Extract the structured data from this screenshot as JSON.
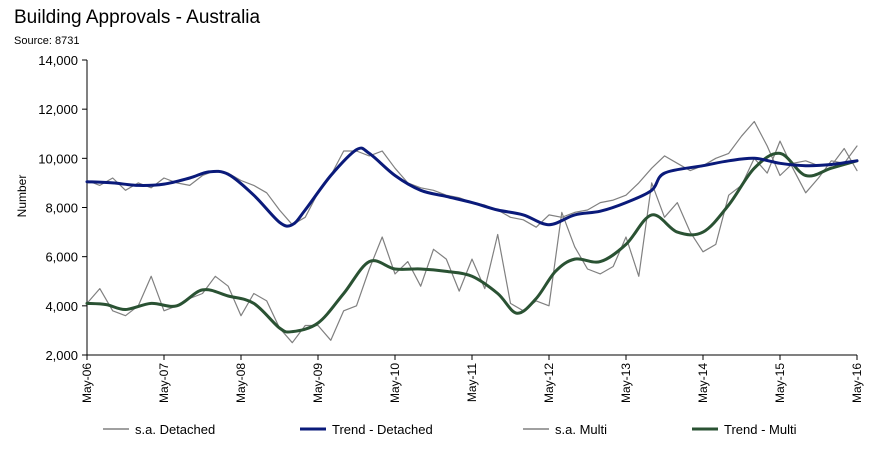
{
  "title": "Building Approvals - Australia",
  "subtitle": "Source: 8731",
  "chart_data": {
    "type": "line",
    "title": "Building Approvals - Australia",
    "subtitle": "Source: 8731",
    "xlabel": "",
    "ylabel": "Number",
    "ylim": [
      2000,
      14000
    ],
    "yticks": [
      2000,
      4000,
      6000,
      8000,
      10000,
      12000,
      14000
    ],
    "ytick_labels": [
      "2,000",
      "4,000",
      "6,000",
      "8,000",
      "10,000",
      "12,000",
      "14,000"
    ],
    "xtick_labels": [
      "May-06",
      "May-07",
      "May-08",
      "May-09",
      "May-10",
      "May-11",
      "May-12",
      "May-13",
      "May-14",
      "May-15",
      "May-16"
    ],
    "xlim": [
      0,
      120
    ],
    "grid": false,
    "legend_position": "bottom",
    "series": [
      {
        "name": "s.a. Detached",
        "color": "#808080",
        "style": "thin",
        "x": [
          0,
          2,
          4,
          6,
          8,
          10,
          12,
          14,
          16,
          18,
          20,
          22,
          24,
          26,
          28,
          30,
          32,
          34,
          36,
          38,
          40,
          42,
          44,
          46,
          48,
          50,
          52,
          54,
          56,
          58,
          60,
          62,
          64,
          66,
          68,
          70,
          72,
          74,
          76,
          78,
          80,
          82,
          84,
          86,
          88,
          90,
          92,
          94,
          96,
          98,
          100,
          102,
          104,
          106,
          108,
          110,
          112,
          114,
          116,
          118,
          120
        ],
        "values": [
          9100,
          8900,
          9200,
          8700,
          9000,
          8800,
          9200,
          9000,
          8900,
          9300,
          9500,
          9400,
          9100,
          8900,
          8600,
          7900,
          7300,
          7600,
          8600,
          9300,
          10300,
          10300,
          10100,
          10300,
          9600,
          9000,
          8800,
          8700,
          8500,
          8400,
          8200,
          8100,
          7900,
          7600,
          7500,
          7200,
          7700,
          7600,
          7800,
          7900,
          8200,
          8300,
          8500,
          9000,
          9600,
          10100,
          9800,
          9500,
          9700,
          10000,
          10200,
          10900,
          11500,
          10500,
          9300,
          9800,
          9900,
          9700,
          9700,
          10400,
          9500
        ]
      },
      {
        "name": "Trend - Detached",
        "color": "#0a1a7a",
        "style": "thick",
        "x": [
          0,
          4,
          8,
          12,
          16,
          19,
          22,
          26,
          30,
          32,
          34,
          38,
          42,
          44,
          48,
          52,
          56,
          60,
          64,
          68,
          72,
          76,
          80,
          84,
          88,
          90,
          96,
          100,
          104,
          108,
          112,
          116,
          120
        ],
        "values": [
          9050,
          9000,
          8900,
          8950,
          9200,
          9450,
          9350,
          8500,
          7400,
          7300,
          7900,
          9300,
          10350,
          10200,
          9300,
          8700,
          8450,
          8200,
          7900,
          7700,
          7300,
          7700,
          7850,
          8200,
          8700,
          9400,
          9700,
          9900,
          10000,
          9800,
          9700,
          9750,
          9900
        ]
      },
      {
        "name": "s.a. Multi",
        "color": "#808080",
        "style": "thin",
        "x": [
          0,
          2,
          4,
          6,
          8,
          10,
          12,
          14,
          16,
          18,
          20,
          22,
          24,
          26,
          28,
          30,
          32,
          34,
          36,
          38,
          40,
          42,
          44,
          46,
          48,
          50,
          52,
          54,
          56,
          58,
          60,
          62,
          64,
          66,
          68,
          70,
          72,
          74,
          76,
          78,
          80,
          82,
          84,
          86,
          88,
          90,
          92,
          94,
          96,
          98,
          100,
          102,
          104,
          106,
          108,
          110,
          112,
          114,
          116,
          118,
          120
        ],
        "values": [
          4100,
          4700,
          3800,
          3600,
          4000,
          5200,
          3800,
          4000,
          4300,
          4500,
          5200,
          4800,
          3600,
          4500,
          4200,
          3100,
          2500,
          3200,
          3200,
          2600,
          3800,
          4000,
          5500,
          6800,
          5300,
          5800,
          4800,
          6300,
          5900,
          4600,
          5900,
          4700,
          6900,
          4100,
          3800,
          4200,
          4000,
          7800,
          6400,
          5500,
          5300,
          5600,
          6800,
          5200,
          9000,
          7600,
          8200,
          7000,
          6200,
          6500,
          8500,
          8900,
          10000,
          9400,
          10700,
          9600,
          8600,
          9200,
          9900,
          9800,
          10500
        ]
      },
      {
        "name": "Trend - Multi",
        "color": "#2a5233",
        "style": "thick",
        "x": [
          0,
          3,
          6,
          10,
          14,
          18,
          22,
          26,
          30,
          32,
          36,
          40,
          44,
          48,
          52,
          56,
          60,
          64,
          67,
          70,
          73,
          76,
          80,
          84,
          88,
          92,
          96,
          100,
          104,
          108,
          112,
          116,
          120
        ],
        "values": [
          4100,
          4050,
          3850,
          4100,
          4000,
          4650,
          4400,
          4100,
          3100,
          2950,
          3300,
          4500,
          5800,
          5500,
          5500,
          5400,
          5200,
          4500,
          3700,
          4300,
          5400,
          5900,
          5800,
          6500,
          7700,
          7000,
          7000,
          8100,
          9600,
          10200,
          9300,
          9600,
          9900
        ]
      }
    ]
  }
}
